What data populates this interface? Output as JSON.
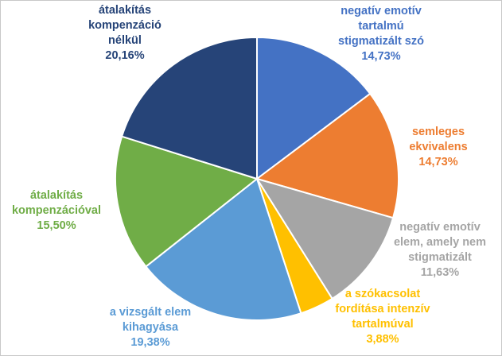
{
  "chart_data": {
    "type": "pie",
    "title": "",
    "start_angle_deg": 0,
    "direction": "clockwise",
    "slices": [
      {
        "lines": [
          "negatív emotív",
          "tartalmú",
          "stigmatizált szó"
        ],
        "value_label": "14,73%",
        "value": 14.73,
        "color": "#4472c4",
        "label_color": "#4472c4"
      },
      {
        "lines": [
          "semleges",
          "ekvivalens"
        ],
        "value_label": "14,73%",
        "value": 14.73,
        "color": "#ed7d31",
        "label_color": "#ed7d31"
      },
      {
        "lines": [
          "negatív emotív",
          "elem, amely nem",
          "stigmatizált"
        ],
        "value_label": "11,63%",
        "value": 11.63,
        "color": "#a5a5a5",
        "label_color": "#a5a5a5"
      },
      {
        "lines": [
          "a szókacsolat",
          "fordítása intenzív",
          "tartalmúval"
        ],
        "value_label": "3,88%",
        "value": 3.88,
        "color": "#ffc000",
        "label_color": "#ffc000"
      },
      {
        "lines": [
          "a vizsgált elem",
          "kihagyása"
        ],
        "value_label": "19,38%",
        "value": 19.38,
        "color": "#5b9bd5",
        "label_color": "#5b9bd5"
      },
      {
        "lines": [
          "átalakítás",
          "kompenzációval"
        ],
        "value_label": "15,50%",
        "value": 15.5,
        "color": "#70ad47",
        "label_color": "#70ad47"
      },
      {
        "lines": [
          "átalakítás",
          "kompenzáció",
          "nélkül"
        ],
        "value_label": "20,16%",
        "value": 20.16,
        "color": "#264478",
        "label_color": "#264478"
      }
    ]
  }
}
